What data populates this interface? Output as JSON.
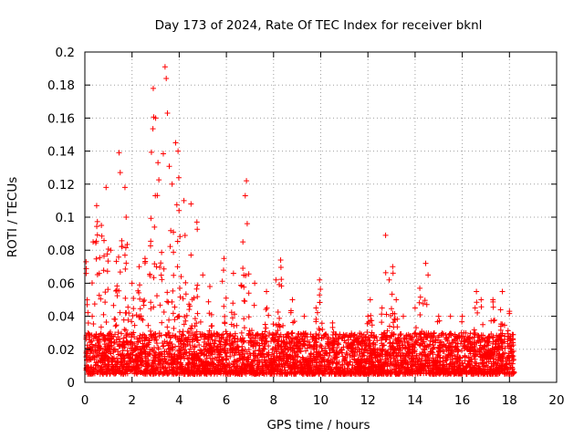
{
  "chart_data": {
    "type": "scatter",
    "title": "Day 173 of 2024, Rate Of TEC Index for receiver bknl",
    "xlabel": "GPS time / hours",
    "ylabel": "ROTI / TECUs",
    "xlim": [
      0,
      20
    ],
    "ylim": [
      0,
      0.2
    ],
    "x_ticks": [
      "0",
      "2",
      "4",
      "6",
      "8",
      "10",
      "12",
      "14",
      "16",
      "18",
      "20"
    ],
    "y_ticks": [
      "0",
      "0.02",
      "0.04",
      "0.06",
      "0.08",
      "0.1",
      "0.12",
      "0.14",
      "0.16",
      "0.18",
      "0.2"
    ],
    "grid": true,
    "marker": "+",
    "series_color": "#ff0000",
    "data_extent_hours": [
      0,
      18.2
    ],
    "baseline_band": [
      0.005,
      0.03
    ],
    "peaks": [
      {
        "x": 0.05,
        "y": 0.073
      },
      {
        "x": 0.35,
        "y": 0.085
      },
      {
        "x": 0.5,
        "y": 0.107
      },
      {
        "x": 0.7,
        "y": 0.095
      },
      {
        "x": 0.9,
        "y": 0.118
      },
      {
        "x": 1.1,
        "y": 0.08
      },
      {
        "x": 1.45,
        "y": 0.139
      },
      {
        "x": 1.5,
        "y": 0.127
      },
      {
        "x": 1.7,
        "y": 0.118
      },
      {
        "x": 1.75,
        "y": 0.1
      },
      {
        "x": 2.0,
        "y": 0.06
      },
      {
        "x": 2.3,
        "y": 0.07
      },
      {
        "x": 2.55,
        "y": 0.075
      },
      {
        "x": 2.9,
        "y": 0.178
      },
      {
        "x": 3.0,
        "y": 0.16
      },
      {
        "x": 3.1,
        "y": 0.133
      },
      {
        "x": 3.4,
        "y": 0.191
      },
      {
        "x": 3.45,
        "y": 0.184
      },
      {
        "x": 3.5,
        "y": 0.163
      },
      {
        "x": 3.7,
        "y": 0.12
      },
      {
        "x": 3.85,
        "y": 0.145
      },
      {
        "x": 3.95,
        "y": 0.14
      },
      {
        "x": 4.2,
        "y": 0.11
      },
      {
        "x": 4.5,
        "y": 0.108
      },
      {
        "x": 4.75,
        "y": 0.097
      },
      {
        "x": 5.0,
        "y": 0.065
      },
      {
        "x": 5.3,
        "y": 0.058
      },
      {
        "x": 5.9,
        "y": 0.075
      },
      {
        "x": 6.3,
        "y": 0.066
      },
      {
        "x": 6.7,
        "y": 0.085
      },
      {
        "x": 6.85,
        "y": 0.122
      },
      {
        "x": 6.8,
        "y": 0.113
      },
      {
        "x": 7.2,
        "y": 0.06
      },
      {
        "x": 7.7,
        "y": 0.055
      },
      {
        "x": 8.1,
        "y": 0.062
      },
      {
        "x": 8.3,
        "y": 0.074
      },
      {
        "x": 8.8,
        "y": 0.05
      },
      {
        "x": 9.3,
        "y": 0.04
      },
      {
        "x": 9.8,
        "y": 0.045
      },
      {
        "x": 9.95,
        "y": 0.062
      },
      {
        "x": 10.5,
        "y": 0.036
      },
      {
        "x": 11.0,
        "y": 0.028
      },
      {
        "x": 11.5,
        "y": 0.025
      },
      {
        "x": 12.0,
        "y": 0.04
      },
      {
        "x": 12.1,
        "y": 0.05
      },
      {
        "x": 12.6,
        "y": 0.045
      },
      {
        "x": 12.75,
        "y": 0.089
      },
      {
        "x": 12.9,
        "y": 0.062
      },
      {
        "x": 13.05,
        "y": 0.07
      },
      {
        "x": 13.2,
        "y": 0.05
      },
      {
        "x": 13.5,
        "y": 0.04
      },
      {
        "x": 14.0,
        "y": 0.045
      },
      {
        "x": 14.2,
        "y": 0.057
      },
      {
        "x": 14.45,
        "y": 0.072
      },
      {
        "x": 14.55,
        "y": 0.065
      },
      {
        "x": 15.0,
        "y": 0.04
      },
      {
        "x": 15.5,
        "y": 0.04
      },
      {
        "x": 16.0,
        "y": 0.04
      },
      {
        "x": 16.6,
        "y": 0.055
      },
      {
        "x": 16.8,
        "y": 0.05
      },
      {
        "x": 17.3,
        "y": 0.05
      },
      {
        "x": 17.7,
        "y": 0.055
      },
      {
        "x": 18.0,
        "y": 0.043
      }
    ]
  }
}
